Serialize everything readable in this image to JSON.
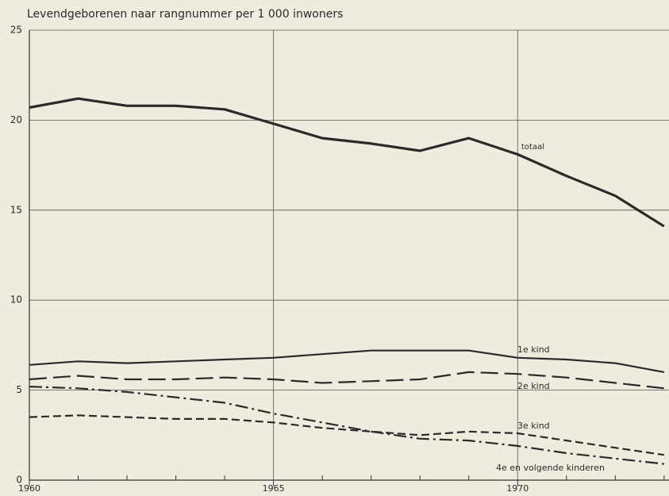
{
  "chart_data": {
    "type": "line",
    "title": "Levendgeborenen naar rangnummer per 1 000 inwoners",
    "x": [
      1960,
      1961,
      1962,
      1963,
      1964,
      1965,
      1966,
      1967,
      1968,
      1969,
      1970,
      1971,
      1972,
      1973
    ],
    "series": [
      {
        "name": "totaal",
        "color": "#2a2a2a",
        "width": 3.2,
        "dash": "none",
        "values": [
          20.7,
          21.2,
          20.8,
          20.8,
          20.6,
          19.8,
          19.0,
          18.7,
          18.3,
          19.0,
          18.1,
          16.9,
          15.8,
          14.1
        ]
      },
      {
        "name": "1e kind",
        "color": "#2a2a2a",
        "width": 2.2,
        "dash": "none",
        "values": [
          6.4,
          6.6,
          6.5,
          6.6,
          6.7,
          6.8,
          7.0,
          7.2,
          7.2,
          7.2,
          6.8,
          6.7,
          6.5,
          6.0
        ]
      },
      {
        "name": "2e kind",
        "color": "#2a2a2a",
        "width": 2.2,
        "dash": "22 8",
        "values": [
          5.6,
          5.8,
          5.6,
          5.6,
          5.7,
          5.6,
          5.4,
          5.5,
          5.6,
          6.0,
          5.9,
          5.7,
          5.4,
          5.1
        ]
      },
      {
        "name": "3e kind",
        "color": "#2a2a2a",
        "width": 2.2,
        "dash": "10 5",
        "values": [
          3.5,
          3.6,
          3.5,
          3.4,
          3.4,
          3.2,
          2.9,
          2.7,
          2.5,
          2.7,
          2.6,
          2.2,
          1.8,
          1.4
        ]
      },
      {
        "name": "4e en volgende kinderen",
        "color": "#2a2a2a",
        "width": 2.2,
        "dash": "16 5 3 5",
        "values": [
          5.2,
          5.1,
          4.9,
          4.6,
          4.3,
          3.7,
          3.2,
          2.7,
          2.3,
          2.2,
          1.9,
          1.5,
          1.2,
          0.9
        ]
      }
    ],
    "xlim": [
      1960,
      1973.1
    ],
    "xticks": [
      1960,
      1965,
      1970
    ],
    "xminorticks": [
      1961,
      1962,
      1963,
      1964,
      1966,
      1967,
      1968,
      1969,
      1971,
      1972,
      1973
    ],
    "ylim": [
      0,
      25
    ],
    "yticks": [
      0,
      5,
      10,
      15,
      20,
      25
    ],
    "grid": true
  }
}
